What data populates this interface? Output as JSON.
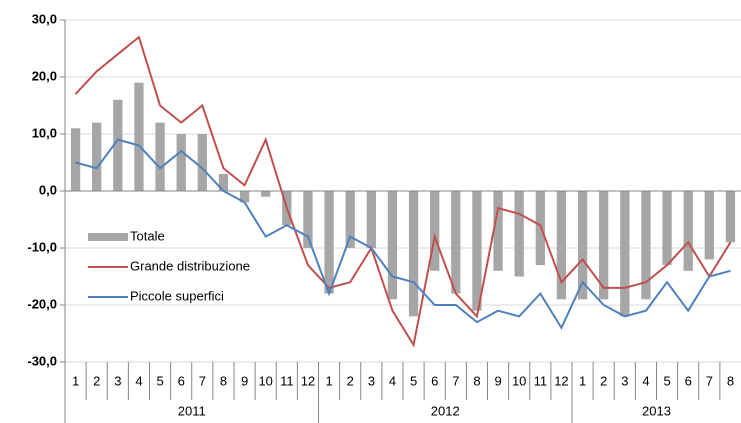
{
  "chart_data": {
    "type": "bar-line",
    "category_groups": [
      {
        "label": "2011",
        "categories": [
          "1",
          "2",
          "3",
          "4",
          "5",
          "6",
          "7",
          "8",
          "9",
          "10",
          "11",
          "12"
        ]
      },
      {
        "label": "2012",
        "categories": [
          "1",
          "2",
          "3",
          "4",
          "5",
          "6",
          "7",
          "8",
          "9",
          "10",
          "11",
          "12"
        ]
      },
      {
        "label": "2013",
        "categories": [
          "1",
          "2",
          "3",
          "4",
          "5",
          "6",
          "7",
          "8"
        ]
      }
    ],
    "series": [
      {
        "name": "Totale",
        "type": "bar",
        "color": "#a6a6a6",
        "values": [
          11,
          12,
          16,
          19,
          12,
          10,
          10,
          3,
          -2,
          -1,
          -6,
          -10,
          -18,
          -10,
          -10,
          -19,
          -22,
          -14,
          -18,
          -21,
          -14,
          -15,
          -13,
          -19,
          -19,
          -19,
          -22,
          -19,
          -13,
          -14,
          -12,
          -9
        ]
      },
      {
        "name": "Grande distribuzione",
        "type": "line",
        "color": "#c0504d",
        "values": [
          17,
          21,
          24,
          27,
          15,
          12,
          15,
          4,
          1,
          9,
          -3,
          -13,
          -17,
          -16,
          -10,
          -21,
          -27,
          -8,
          -18,
          -22,
          -3,
          -4,
          -6,
          -16,
          -12,
          -17,
          -17,
          -16,
          -13,
          -9,
          -15,
          -9
        ]
      },
      {
        "name": "Piccole superfici",
        "type": "line",
        "color": "#4f81bd",
        "values": [
          5,
          4,
          9,
          8,
          4,
          7,
          4,
          0,
          -2,
          -8,
          -6,
          -8,
          -18,
          -8,
          -10,
          -15,
          -16,
          -20,
          -20,
          -23,
          -21,
          -22,
          -18,
          -24,
          -16,
          -20,
          -22,
          -21,
          -16,
          -21,
          -15,
          -14
        ]
      }
    ],
    "ylim": [
      -30,
      30
    ],
    "yticks": [
      {
        "value": -30,
        "label": "-30,0"
      },
      {
        "value": -20,
        "label": "-20,0"
      },
      {
        "value": -10,
        "label": "-10,0"
      },
      {
        "value": 0,
        "label": "0,0"
      },
      {
        "value": 10,
        "label": "10,0"
      },
      {
        "value": 20,
        "label": "20,0"
      },
      {
        "value": 30,
        "label": "30,0"
      }
    ],
    "grid": true,
    "legend": "center-left"
  }
}
